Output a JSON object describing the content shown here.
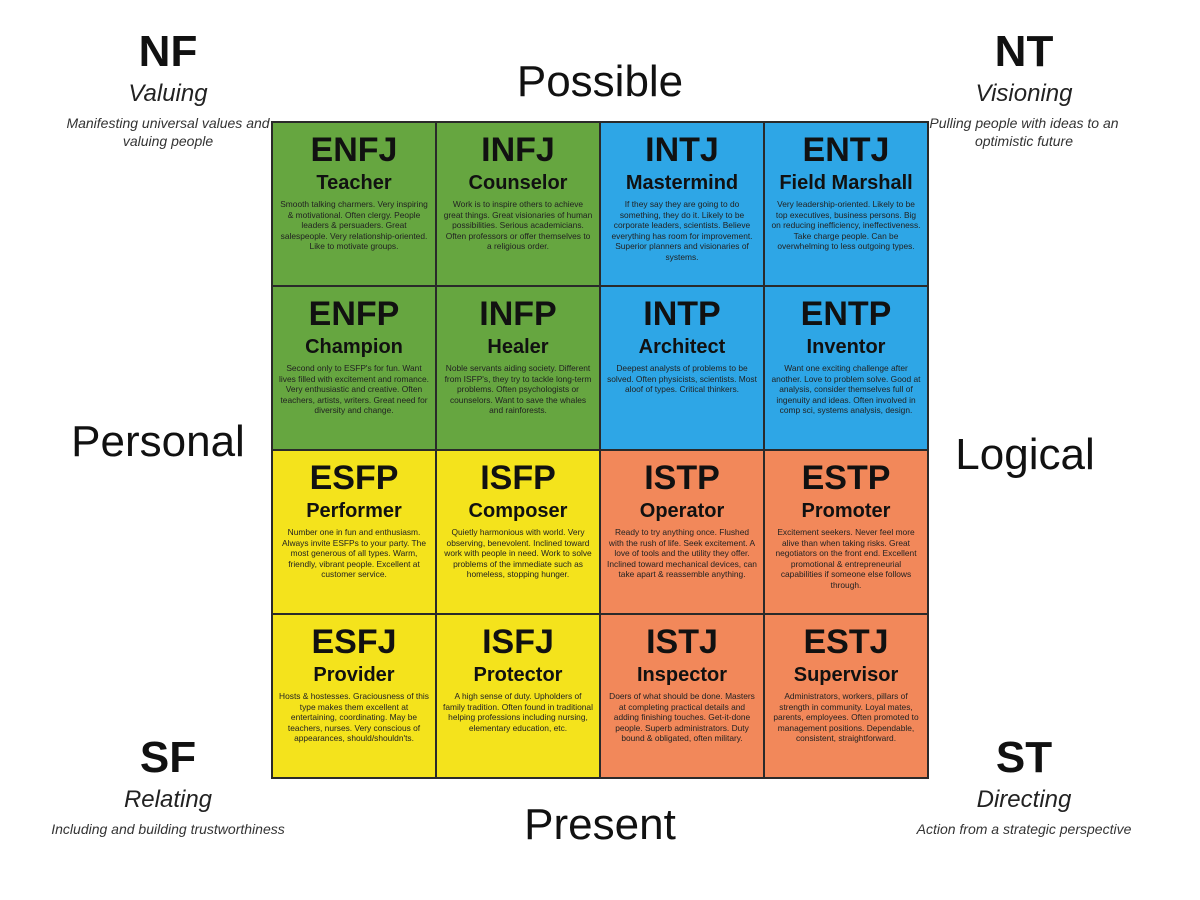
{
  "corners": [
    {
      "code": "NF",
      "subtitle": "Valuing",
      "description": "Manifesting universal values and valuing people"
    },
    {
      "code": "NT",
      "subtitle": "Visioning",
      "description": "Pulling people with ideas to an optimistic future"
    },
    {
      "code": "SF",
      "subtitle": "Relating",
      "description": "Including and building trustworthiness"
    },
    {
      "code": "ST",
      "subtitle": "Directing",
      "description": "Action from a strategic perspective"
    }
  ],
  "axes": {
    "top": "Possible",
    "bottom": "Present",
    "left": "Personal",
    "right": "Logical"
  },
  "grid": {
    "cells": [
      {
        "type": "ENFJ",
        "role": "Teacher",
        "color": "#66a640",
        "description": "Smooth talking charmers. Very inspiring & motivational. Often clergy. People leaders & persuaders. Great salespeople. Very relationship-oriented. Like to motivate groups."
      },
      {
        "type": "INFJ",
        "role": "Counselor",
        "color": "#66a640",
        "description": "Work is to inspire others to achieve great things. Great visionaries of human possibilities. Serious academicians. Often professors or offer themselves to a religious order."
      },
      {
        "type": "INTJ",
        "role": "Mastermind",
        "color": "#2ea6e6",
        "description": "If they say they are going to do something, they do it. Likely to be corporate leaders, scientists. Believe everything has room for improvement. Superior planners and visionaries of systems."
      },
      {
        "type": "ENTJ",
        "role": "Field Marshall",
        "color": "#2ea6e6",
        "description": "Very leadership-oriented. Likely to be top executives, business persons. Big on reducing inefficiency, ineffectiveness. Take charge people. Can be overwhelming to less outgoing types."
      },
      {
        "type": "ENFP",
        "role": "Champion",
        "color": "#66a640",
        "description": "Second only to ESFP's for fun. Want lives filled with excitement and romance. Very enthusiastic and creative. Often teachers, artists, writers. Great need for diversity and change."
      },
      {
        "type": "INFP",
        "role": "Healer",
        "color": "#66a640",
        "description": "Noble servants aiding society. Different from ISFP's, they try to tackle long-term problems. Often psychologists or counselors. Want to save the whales and rainforests."
      },
      {
        "type": "INTP",
        "role": "Architect",
        "color": "#2ea6e6",
        "description": "Deepest analysts of problems to be solved. Often physicists, scientists. Most aloof of types. Critical thinkers."
      },
      {
        "type": "ENTP",
        "role": "Inventor",
        "color": "#2ea6e6",
        "description": "Want one exciting challenge after another. Love to problem solve. Good at analysis, consider themselves full of ingenuity and ideas. Often involved in comp sci, systems analysis, design."
      },
      {
        "type": "ESFP",
        "role": "Performer",
        "color": "#f4e31c",
        "description": "Number one in fun and enthusiasm. Always invite ESFPs to your party. The most generous of all types. Warm, friendly, vibrant people. Excellent at customer service."
      },
      {
        "type": "ISFP",
        "role": "Composer",
        "color": "#f4e31c",
        "description": "Quietly harmonious with world. Very observing, benevolent. Inclined toward work with people in need. Work to solve problems of the immediate such as homeless, stopping hunger."
      },
      {
        "type": "ISTP",
        "role": "Operator",
        "color": "#f2885a",
        "description": "Ready to try anything once. Flushed with the rush of life. Seek excitement. A love of tools and the utility they offer. Inclined toward mechanical devices, can take apart & reassemble anything."
      },
      {
        "type": "ESTP",
        "role": "Promoter",
        "color": "#f2885a",
        "description": "Excitement seekers. Never feel more alive than when taking risks. Great negotiators on the front end. Excellent promotional & entrepreneurial capabilities if someone else follows through."
      },
      {
        "type": "ESFJ",
        "role": "Provider",
        "color": "#f4e31c",
        "description": "Hosts & hostesses. Graciousness of this type makes them excellent at entertaining, coordinating. May be teachers, nurses. Very conscious of appearances, should/shouldn'ts."
      },
      {
        "type": "ISFJ",
        "role": "Protector",
        "color": "#f4e31c",
        "description": "A high sense of duty. Upholders of family tradition. Often found in traditional helping professions including nursing, elementary education, etc."
      },
      {
        "type": "ISTJ",
        "role": "Inspector",
        "color": "#f2885a",
        "description": "Doers of what should be done. Masters at completing practical details and adding finishing touches. Get-it-done people. Superb administrators. Duty bound & obligated, often military."
      },
      {
        "type": "ESTJ",
        "role": "Supervisor",
        "color": "#f2885a",
        "description": "Administrators, workers, pillars of strength in community. Loyal mates, parents, employees. Often promoted to management positions. Dependable, consistent, straightforward."
      }
    ]
  }
}
